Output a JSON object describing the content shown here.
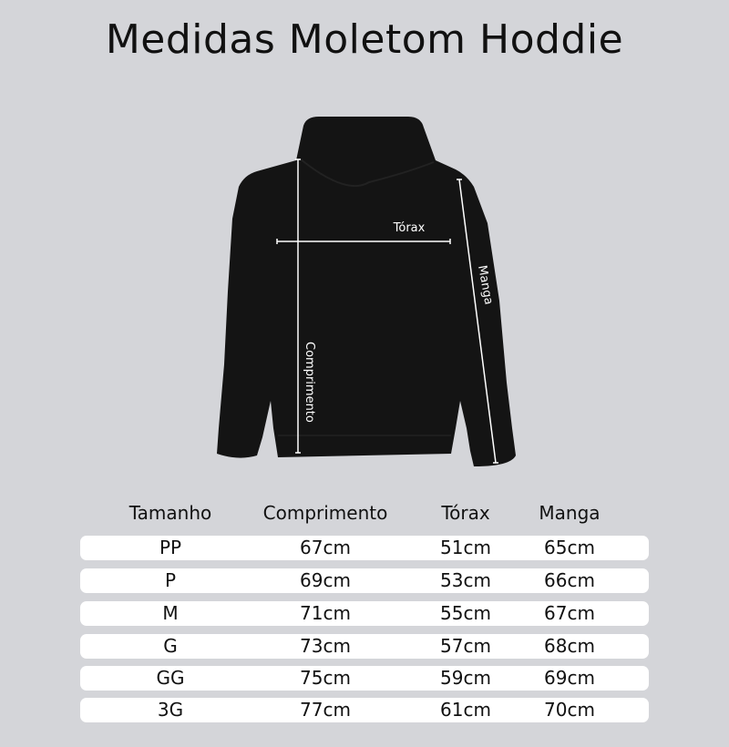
{
  "title": "Medidas Moletom Hoddie",
  "diagram": {
    "labels": {
      "chest": "Tórax",
      "length": "Comprimento",
      "sleeve": "Manga"
    },
    "garment_color": "#141414",
    "line_color": "#ffffff"
  },
  "table": {
    "headers": [
      "Tamanho",
      "Comprimento",
      "Tórax",
      "Manga"
    ],
    "rows": [
      [
        "PP",
        "67cm",
        "51cm",
        "65cm"
      ],
      [
        "P",
        "69cm",
        "53cm",
        "66cm"
      ],
      [
        "M",
        "71cm",
        "55cm",
        "67cm"
      ],
      [
        "G",
        "73cm",
        "57cm",
        "68cm"
      ],
      [
        "GG",
        "75cm",
        "59cm",
        "69cm"
      ],
      [
        "3G",
        "77cm",
        "61cm",
        "70cm"
      ]
    ]
  }
}
